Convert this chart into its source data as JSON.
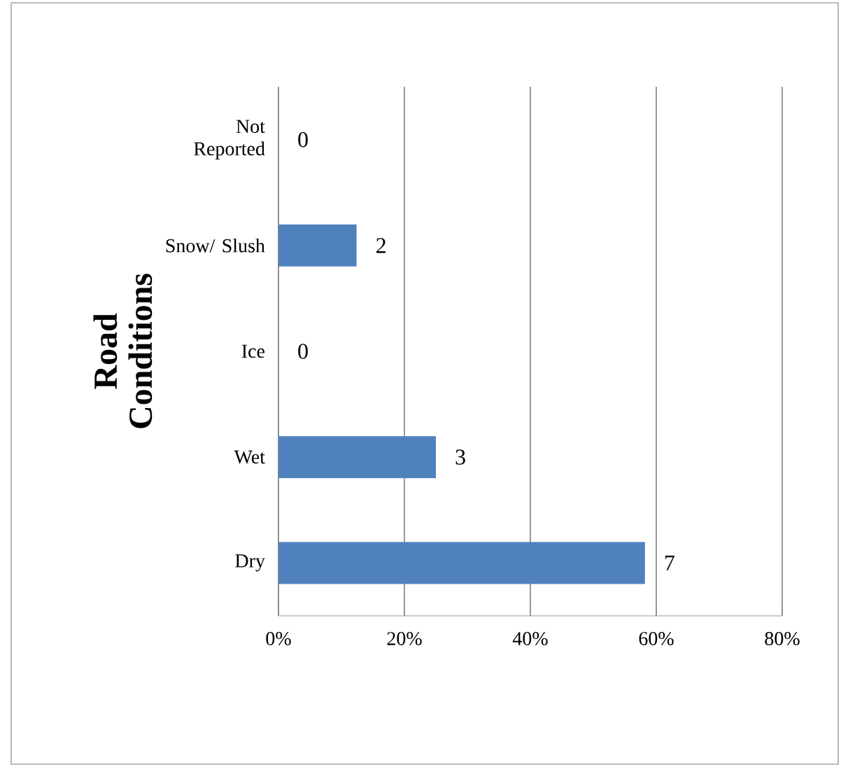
{
  "chart_data": {
    "type": "bar",
    "orientation": "horizontal",
    "ylabel": "Road Conditions",
    "categories": [
      "Not Reported",
      "Snow/ Slush",
      "Ice",
      "Wet",
      "Dry"
    ],
    "values": [
      0,
      12.4,
      0,
      25,
      58.2
    ],
    "annotations": [
      {
        "text": "0",
        "x": 0,
        "y": "Not Reported"
      },
      {
        "text": "2",
        "x": 12.4,
        "y": "Snow/ Slush"
      },
      {
        "text": "0",
        "x": 0,
        "y": "Ice"
      },
      {
        "text": "3",
        "x": 25,
        "y": "Wet"
      },
      {
        "text": "7",
        "x": 58.2,
        "y": "Dry"
      }
    ],
    "color": "#4f81bd",
    "xlim": [
      0,
      80
    ],
    "xticks": [
      {
        "value": 0,
        "label": "0%"
      },
      {
        "value": 20,
        "label": "20%"
      },
      {
        "value": 40,
        "label": "40%"
      },
      {
        "value": 60,
        "label": "60%"
      },
      {
        "value": 80,
        "label": "80%"
      }
    ],
    "grid": "x"
  }
}
